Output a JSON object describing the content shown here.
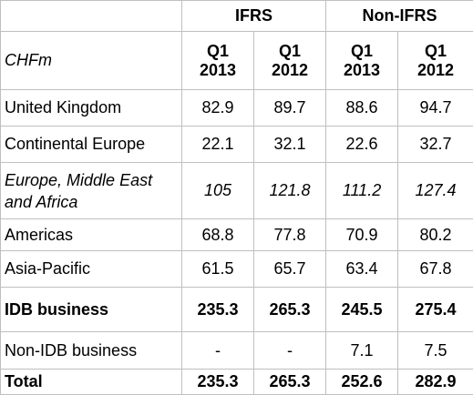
{
  "header": {
    "group_ifrs": "IFRS",
    "group_non_ifrs": "Non-IFRS",
    "unit_label": "CHFm",
    "periods": [
      {
        "q": "Q1",
        "year": "2013"
      },
      {
        "q": "Q1",
        "year": "2012"
      },
      {
        "q": "Q1",
        "year": "2013"
      },
      {
        "q": "Q1",
        "year": "2012"
      }
    ]
  },
  "rows": [
    {
      "label": "United Kingdom",
      "values": [
        "82.9",
        "89.7",
        "88.6",
        "94.7"
      ]
    },
    {
      "label": "Continental Europe",
      "values": [
        "22.1",
        "32.1",
        "22.6",
        "32.7"
      ]
    },
    {
      "label": "Europe, Middle East and Africa",
      "values": [
        "105",
        "121.8",
        "111.2",
        "127.4"
      ]
    },
    {
      "label": "Americas",
      "values": [
        "68.8",
        "77.8",
        "70.9",
        "80.2"
      ]
    },
    {
      "label": "Asia-Pacific",
      "values": [
        "61.5",
        "65.7",
        "63.4",
        "67.8"
      ]
    },
    {
      "label": "IDB business",
      "values": [
        "235.3",
        "265.3",
        "245.5",
        "275.4"
      ]
    },
    {
      "label": "Non-IDB business",
      "values": [
        "-",
        "-",
        "7.1",
        "7.5"
      ]
    },
    {
      "label": "Total",
      "values": [
        "235.3",
        "265.3",
        "252.6",
        "282.9"
      ]
    }
  ]
}
